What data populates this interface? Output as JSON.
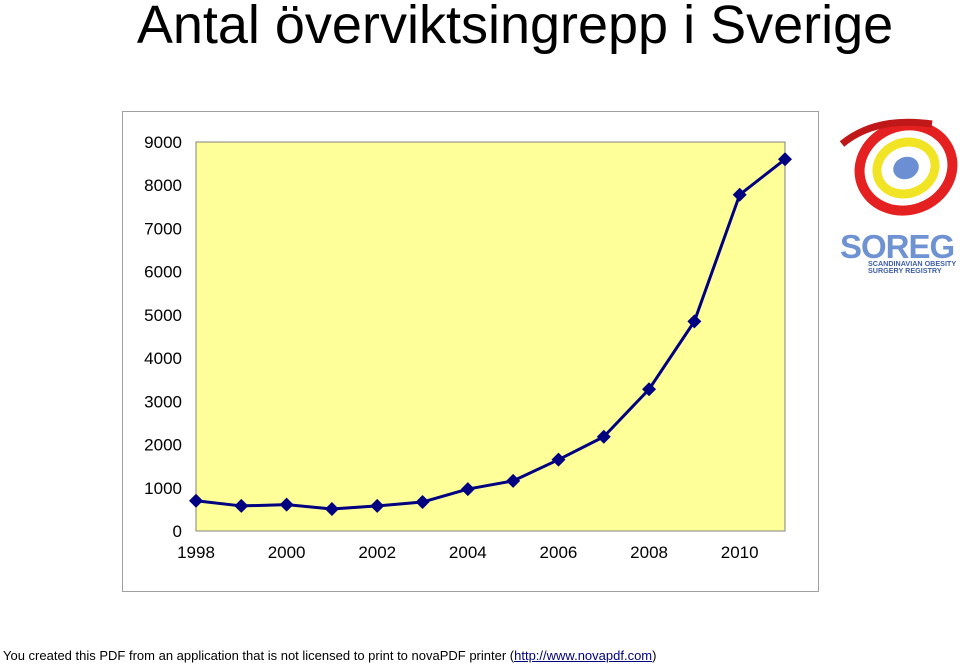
{
  "title": "Antal överviktsingrepp i Sverige",
  "chart_data": {
    "type": "line",
    "title": "",
    "xlabel": "",
    "ylabel": "",
    "x": [
      1998,
      1999,
      2000,
      2001,
      2002,
      2003,
      2004,
      2005,
      2006,
      2007,
      2008,
      2009,
      2010,
      2011
    ],
    "series": [
      {
        "values": [
          700,
          580,
          610,
          510,
          580,
          670,
          970,
          1160,
          1650,
          2180,
          3280,
          4850,
          7780,
          8600
        ]
      }
    ],
    "xlim": [
      1998,
      2011
    ],
    "ylim": [
      0,
      9000
    ],
    "xticks": [
      "1998",
      "2000",
      "2002",
      "2004",
      "2006",
      "2008",
      "2010"
    ],
    "yticks": [
      "0",
      "1000",
      "2000",
      "3000",
      "4000",
      "5000",
      "6000",
      "7000",
      "8000",
      "9000"
    ],
    "grid": false,
    "legend": "none",
    "colors": {
      "plot_background": "#FFFF99",
      "line": "#000080",
      "marker": "#000080"
    }
  },
  "logo": {
    "text": "SOREG",
    "subtitle_line1": "SCANDINAVIAN OBESITY",
    "subtitle_line2": "SURGERY REGISTRY"
  },
  "footer": {
    "text": "You created this PDF from an application that is not licensed to print to novaPDF printer (",
    "link": "http://www.novapdf.com",
    "close": ")"
  }
}
